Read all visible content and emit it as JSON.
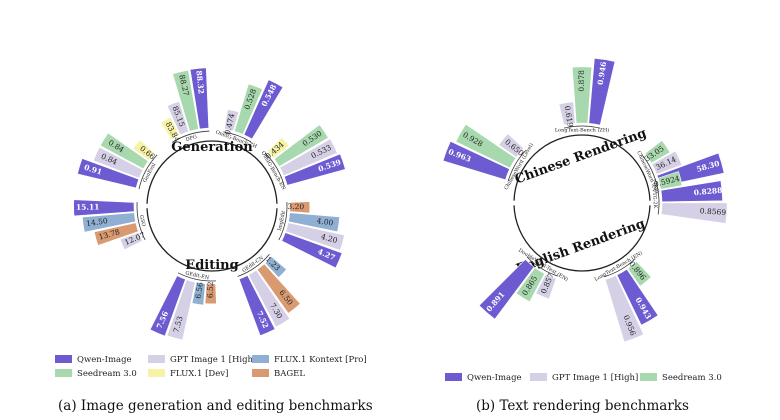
{
  "colors": {
    "Qwen-Image": "#6c5bd1",
    "Seedream 3.0": "#a8d8ad",
    "GPT Image 1 [High]": "#d6d0e6",
    "FLUX.1 [Dev]": "#f6f2a6",
    "FLUX.1 Kontext [Pro]": "#8fb0d3",
    "BAGEL": "#d99a72"
  },
  "captions": {
    "a": "(a) Image generation and editing benchmarks",
    "b": "(b) Text rendering benchmarks"
  },
  "legends": {
    "a": [
      "Qwen-Image",
      "GPT Image 1 [High]",
      "FLUX.1 Kontext [Pro]",
      "Seedream 3.0",
      "FLUX.1 [Dev]",
      "BAGEL"
    ],
    "b": [
      "Qwen-Image",
      "GPT Image 1 [High]",
      "Seedream 3.0"
    ]
  },
  "chart_data": [
    {
      "type": "bar",
      "layout": "radial",
      "groups": [
        {
          "title": "Generation",
          "categories": [
            {
              "label": "GenEval",
              "bars": [
                {
                  "model": "Qwen-Image",
                  "value": "0.91"
                },
                {
                  "model": "GPT Image 1 [High]",
                  "value": "0.84"
                },
                {
                  "model": "Seedream 3.0",
                  "value": "0.84"
                },
                {
                  "model": "FLUX.1 [Dev]",
                  "value": "0.66"
                }
              ]
            },
            {
              "label": "DPG",
              "bars": [
                {
                  "model": "FLUX.1 [Dev]",
                  "value": "83.84"
                },
                {
                  "model": "GPT Image 1 [High]",
                  "value": "85.15"
                },
                {
                  "model": "Seedream 3.0",
                  "value": "88.27"
                },
                {
                  "model": "Qwen-Image",
                  "value": "88.32"
                }
              ]
            },
            {
              "label": "OneIG-Bench-ZH",
              "bars": [
                {
                  "model": "GPT Image 1 [High]",
                  "value": "0.474"
                },
                {
                  "model": "Seedream 3.0",
                  "value": "0.528"
                },
                {
                  "model": "Qwen-Image",
                  "value": "0.548"
                }
              ]
            },
            {
              "label": "OneIG-Bench-EN",
              "bars": [
                {
                  "model": "FLUX.1 [Dev]",
                  "value": "0.434"
                },
                {
                  "model": "Seedream 3.0",
                  "value": "0.530"
                },
                {
                  "model": "GPT Image 1 [High]",
                  "value": "0.533"
                },
                {
                  "model": "Qwen-Image",
                  "value": "0.539"
                }
              ]
            }
          ]
        },
        {
          "title": "Editing",
          "categories": [
            {
              "label": "ImgEdit",
              "bars": [
                {
                  "model": "BAGEL",
                  "value": "3.20"
                },
                {
                  "model": "FLUX.1 Kontext [Pro]",
                  "value": "4.00"
                },
                {
                  "model": "GPT Image 1 [High]",
                  "value": "4.20"
                },
                {
                  "model": "Qwen-Image",
                  "value": "4.27"
                }
              ]
            },
            {
              "label": "GEdit-CN",
              "bars": [
                {
                  "model": "FLUX.1 Kontext [Pro]",
                  "value": "1.23"
                },
                {
                  "model": "BAGEL",
                  "value": "6.50"
                },
                {
                  "model": "GPT Image 1 [High]",
                  "value": "7.30"
                },
                {
                  "model": "Qwen-Image",
                  "value": "7.52"
                }
              ]
            },
            {
              "label": "GEdit-EN",
              "bars": [
                {
                  "model": "BAGEL",
                  "value": "6.52"
                },
                {
                  "model": "FLUX.1 Kontext [Pro]",
                  "value": "6.56"
                },
                {
                  "model": "GPT Image 1 [High]",
                  "value": "7.53"
                },
                {
                  "model": "Qwen-Image",
                  "value": "7.56"
                }
              ]
            },
            {
              "label": "GSO",
              "bars": [
                {
                  "model": "GPT Image 1 [High]",
                  "value": "12.07"
                },
                {
                  "model": "BAGEL",
                  "value": "13.78"
                },
                {
                  "model": "FLUX.1 Kontext [Pro]",
                  "value": "14.50"
                },
                {
                  "model": "Qwen-Image",
                  "value": "15.11"
                }
              ]
            }
          ]
        }
      ]
    },
    {
      "type": "bar",
      "layout": "radial",
      "groups": [
        {
          "title": "Chinese Rendering",
          "categories": [
            {
              "label": "ChineseWord (Level)",
              "bars": [
                {
                  "model": "Qwen-Image",
                  "value": "0.963"
                },
                {
                  "model": "Seedream 3.0",
                  "value": "0.928"
                },
                {
                  "model": "GPT Image 1 [High]",
                  "value": "0.650"
                }
              ]
            },
            {
              "label": "LongText-Bench (ZH)",
              "bars": [
                {
                  "model": "GPT Image 1 [High]",
                  "value": "0.619"
                },
                {
                  "model": "Seedream 3.0",
                  "value": "0.878"
                },
                {
                  "model": "Qwen-Image",
                  "value": "0.946"
                }
              ]
            },
            {
              "label": "ChineseWord (All)",
              "bars": [
                {
                  "model": "Seedream 3.0",
                  "value": "33.05"
                },
                {
                  "model": "GPT Image 1 [High]",
                  "value": "36.14"
                },
                {
                  "model": "Qwen-Image",
                  "value": "58.30"
                }
              ]
            }
          ]
        },
        {
          "title": "English Rendering",
          "categories": [
            {
              "label": "CVTG-2K",
              "bars": [
                {
                  "model": "Seedream 3.0",
                  "value": "0.5924"
                },
                {
                  "model": "Qwen-Image",
                  "value": "0.8288"
                },
                {
                  "model": "GPT Image 1 [High]",
                  "value": "0.8569"
                }
              ]
            },
            {
              "label": "LongText-Bench (EN)",
              "bars": [
                {
                  "model": "Seedream 3.0",
                  "value": "0.896"
                },
                {
                  "model": "Qwen-Image",
                  "value": "0.943"
                },
                {
                  "model": "GPT Image 1 [High]",
                  "value": "0.956"
                }
              ]
            },
            {
              "label": "DoubleWord-Text (EN)",
              "bars": [
                {
                  "model": "GPT Image 1 [High]",
                  "value": "0.857"
                },
                {
                  "model": "Seedream 3.0",
                  "value": "0.865"
                },
                {
                  "model": "Qwen-Image",
                  "value": "0.891"
                }
              ]
            }
          ]
        }
      ]
    }
  ]
}
